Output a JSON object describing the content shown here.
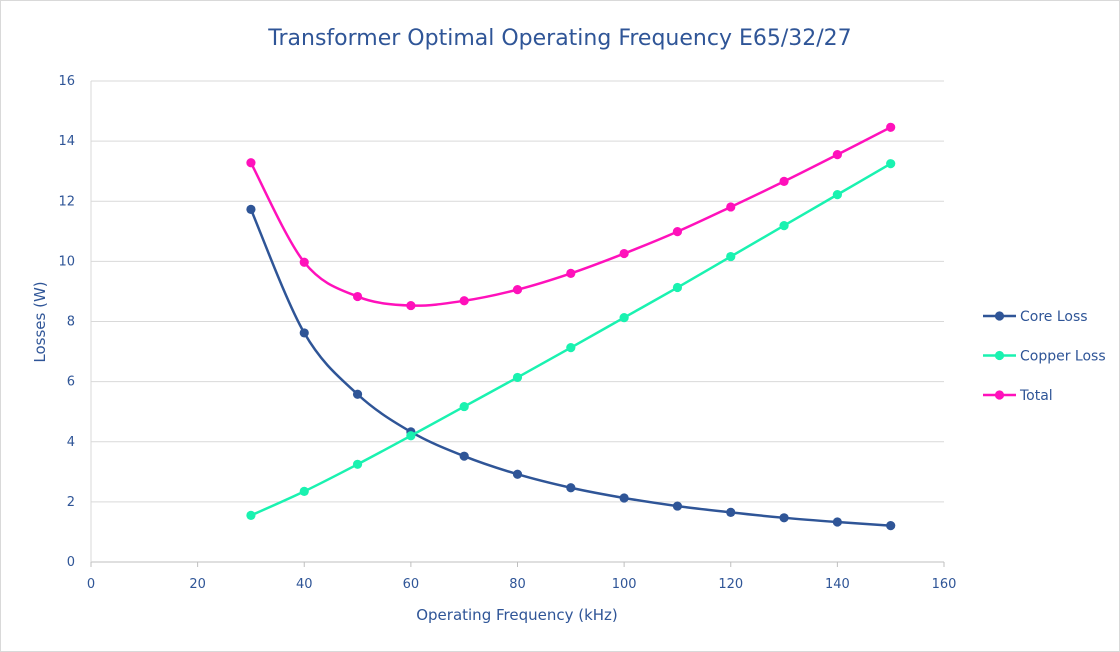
{
  "chart_data": {
    "type": "line",
    "title": "Transformer Optimal Operating Frequency E65/32/27",
    "xlabel": "Operating Frequency (kHz)",
    "ylabel": "Losses (W)",
    "xlim": [
      0,
      160
    ],
    "ylim": [
      0,
      16
    ],
    "x_ticks": [
      0,
      20,
      40,
      60,
      80,
      100,
      120,
      140,
      160
    ],
    "y_ticks": [
      0,
      2,
      4,
      6,
      8,
      10,
      12,
      14,
      16
    ],
    "x_tick_labels": [
      "0",
      "20",
      "40",
      "60",
      "80",
      "100",
      "120",
      "140",
      "160"
    ],
    "y_tick_labels": [
      "0",
      "2",
      "4",
      "6",
      "8",
      "10",
      "12",
      "14",
      "16"
    ],
    "grid": "horizontal",
    "legend_position": "right",
    "x": [
      30,
      40,
      50,
      60,
      70,
      80,
      90,
      100,
      110,
      120,
      130,
      140,
      150
    ],
    "series": [
      {
        "name": "Core Loss",
        "color": "#2f5597",
        "values": [
          11.73,
          7.62,
          5.58,
          4.33,
          3.52,
          2.92,
          2.47,
          2.13,
          1.86,
          1.65,
          1.47,
          1.33,
          1.21
        ]
      },
      {
        "name": "Copper Loss",
        "color": "#1af2b0",
        "values": [
          1.55,
          2.35,
          3.25,
          4.2,
          5.17,
          6.14,
          7.13,
          8.13,
          9.13,
          10.16,
          11.19,
          12.22,
          13.25
        ]
      },
      {
        "name": "Total",
        "color": "#ff11bb",
        "values": [
          13.28,
          9.97,
          8.83,
          8.53,
          8.69,
          9.06,
          9.6,
          10.26,
          10.99,
          11.81,
          12.66,
          13.55,
          14.46
        ]
      }
    ]
  }
}
